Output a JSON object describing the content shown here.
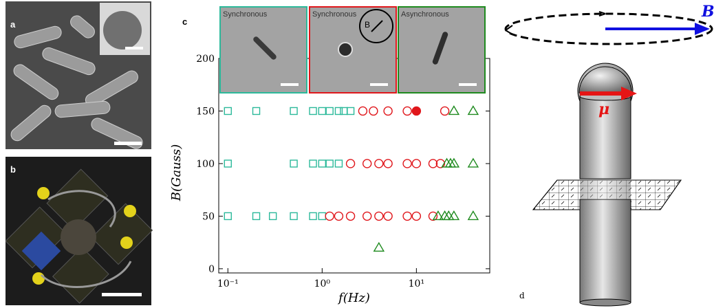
{
  "panels": {
    "a": "a",
    "b": "b",
    "c": "c",
    "d": "d"
  },
  "diagram": {
    "field_label": "B",
    "moment_label": "μ"
  },
  "chart_data": {
    "type": "scatter",
    "xlabel": "f(Hz)",
    "ylabel": "B(Gauss)",
    "xscale": "log",
    "xlim": [
      0.08,
      60
    ],
    "ylim": [
      -4,
      200
    ],
    "xticks": [
      {
        "value": 0.1,
        "label": "10⁻¹"
      },
      {
        "value": 1,
        "label": "10⁰"
      },
      {
        "value": 10,
        "label": "10¹"
      }
    ],
    "yticks": [
      0,
      50,
      100,
      150,
      200
    ],
    "series": [
      {
        "name": "Synchronous",
        "color": "#2bb99a",
        "marker": "square",
        "x": [
          0.1,
          0.2,
          0.5,
          0.8,
          1,
          1.2,
          1.5,
          1.7,
          2,
          0.1,
          0.5,
          0.8,
          1,
          1.2,
          1.5,
          0.1,
          0.2,
          0.3,
          0.5,
          0.8,
          1
        ],
        "values": [
          150,
          150,
          150,
          150,
          150,
          150,
          150,
          150,
          150,
          100,
          100,
          100,
          100,
          100,
          100,
          50,
          50,
          50,
          50,
          50,
          50
        ]
      },
      {
        "name": "Synchronous",
        "color": "#e0161b",
        "marker": "circle",
        "x": [
          2.7,
          3.5,
          5,
          8,
          20,
          2,
          3,
          4,
          5,
          8,
          10,
          15,
          18,
          1.2,
          1.5,
          2,
          3,
          4,
          5,
          8,
          10,
          15
        ],
        "values": [
          150,
          150,
          150,
          150,
          150,
          100,
          100,
          100,
          100,
          100,
          100,
          100,
          100,
          50,
          50,
          50,
          50,
          50,
          50,
          50,
          50,
          50
        ]
      },
      {
        "name": "Asynchronous",
        "color": "#1e8a1e",
        "marker": "triangle",
        "x": [
          25,
          40,
          21,
          23,
          25,
          40,
          17,
          20,
          22,
          25,
          40,
          4
        ],
        "values": [
          150,
          150,
          100,
          100,
          100,
          100,
          50,
          50,
          50,
          50,
          50,
          20
        ]
      },
      {
        "color": "#e0161b",
        "marker": "circle",
        "filled": true,
        "x": [
          10
        ],
        "values": [
          150
        ]
      }
    ]
  }
}
